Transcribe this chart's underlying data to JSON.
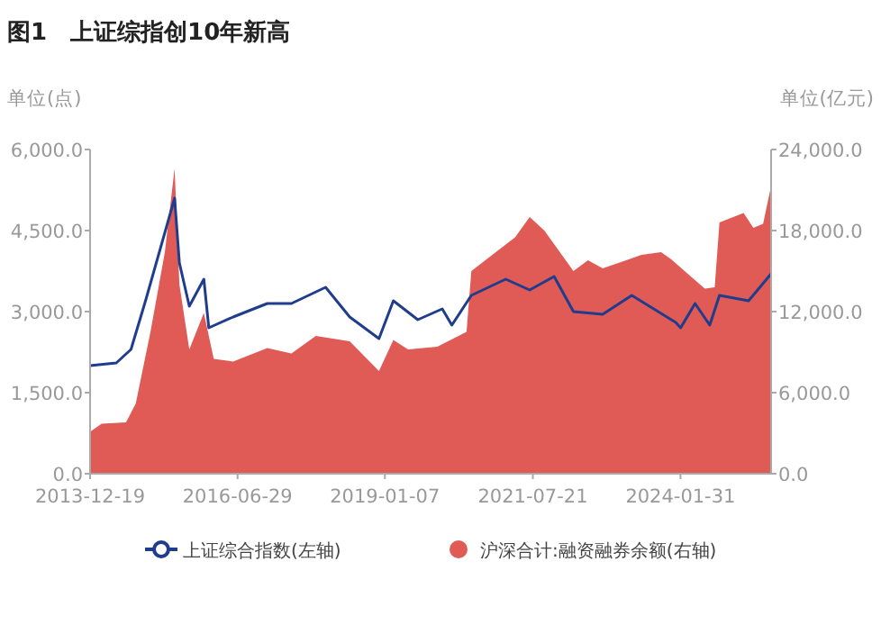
{
  "chart_data": {
    "type": "line",
    "title": "图1　上证综指创10年新高",
    "ylabel": "单位(点)",
    "y2label": "单位(亿元)",
    "xlim": [
      "2013-12-19",
      "2025-08-20"
    ],
    "xticks": [
      "2013-12-19",
      "2016-06-29",
      "2019-01-07",
      "2021-07-21",
      "2024-01-31"
    ],
    "ylim": [
      0,
      6000
    ],
    "yticks": [
      {
        "value": 0,
        "label": "0.0"
      },
      {
        "value": 1500,
        "label": "1,500.0"
      },
      {
        "value": 3000,
        "label": "3,000.0"
      },
      {
        "value": 4500,
        "label": "4,500.0"
      },
      {
        "value": 6000,
        "label": "6,000.0"
      }
    ],
    "y2lim": [
      0,
      24000
    ],
    "y2ticks": [
      {
        "value": 0,
        "label": "0.0"
      },
      {
        "value": 6000,
        "label": "6,000.0"
      },
      {
        "value": 12000,
        "label": "12,000.0"
      },
      {
        "value": 18000,
        "label": "18,000.0"
      },
      {
        "value": 24000,
        "label": "24,000.0"
      }
    ],
    "grid": false,
    "legend": "bottom",
    "series": [
      {
        "name": "沪深合计:融资融券余额(右轴)",
        "type": "area",
        "axis": "y2",
        "color": "#e05a56",
        "x": [
          "2013-12-19",
          "2014-03",
          "2014-08",
          "2014-10",
          "2015-01",
          "2015-04",
          "2015-06",
          "2015-07",
          "2015-09",
          "2015-12",
          "2016-02",
          "2016-06",
          "2017-01",
          "2017-06",
          "2017-11",
          "2018-06",
          "2018-12",
          "2019-03",
          "2019-06",
          "2019-12",
          "2020-06",
          "2020-07",
          "2020-12",
          "2021-04",
          "2021-07",
          "2021-10",
          "2022-04",
          "2022-07",
          "2022-10",
          "2023-02",
          "2023-06",
          "2023-10",
          "2023-12",
          "2024-07",
          "2024-09",
          "2024-10",
          "2025-03",
          "2025-05",
          "2025-07",
          "2025-08-20"
        ],
        "values": [
          3100,
          3700,
          3800,
          5200,
          10500,
          16400,
          22600,
          14000,
          9200,
          11900,
          8500,
          8300,
          9300,
          8900,
          10200,
          9800,
          7600,
          9900,
          9200,
          9400,
          10500,
          15000,
          16400,
          17500,
          19000,
          18000,
          15000,
          15800,
          15200,
          15700,
          16200,
          16400,
          15900,
          13700,
          13800,
          18600,
          19300,
          18200,
          18500,
          21300
        ]
      },
      {
        "name": "上证综合指数(左轴)",
        "axis": "y",
        "color": "#1f3d8c",
        "x": [
          "2013-12-19",
          "2014-06",
          "2014-09",
          "2014-12",
          "2015-06",
          "2015-07",
          "2015-09",
          "2015-12",
          "2016-01",
          "2016-06",
          "2017-01",
          "2017-06",
          "2018-01",
          "2018-06",
          "2018-12",
          "2019-03",
          "2019-08",
          "2020-01",
          "2020-03",
          "2020-07",
          "2021-02",
          "2021-07",
          "2021-12",
          "2022-04",
          "2022-10",
          "2023-04",
          "2024-01",
          "2024-02",
          "2024-05",
          "2024-08",
          "2024-10",
          "2025-04",
          "2025-08-20"
        ],
        "values": [
          2000,
          2050,
          2300,
          3200,
          5100,
          3900,
          3100,
          3600,
          2700,
          2900,
          3150,
          3150,
          3450,
          2900,
          2500,
          3200,
          2850,
          3050,
          2750,
          3300,
          3600,
          3400,
          3650,
          3000,
          2950,
          3300,
          2800,
          2700,
          3150,
          2750,
          3300,
          3200,
          3700
        ]
      }
    ]
  }
}
